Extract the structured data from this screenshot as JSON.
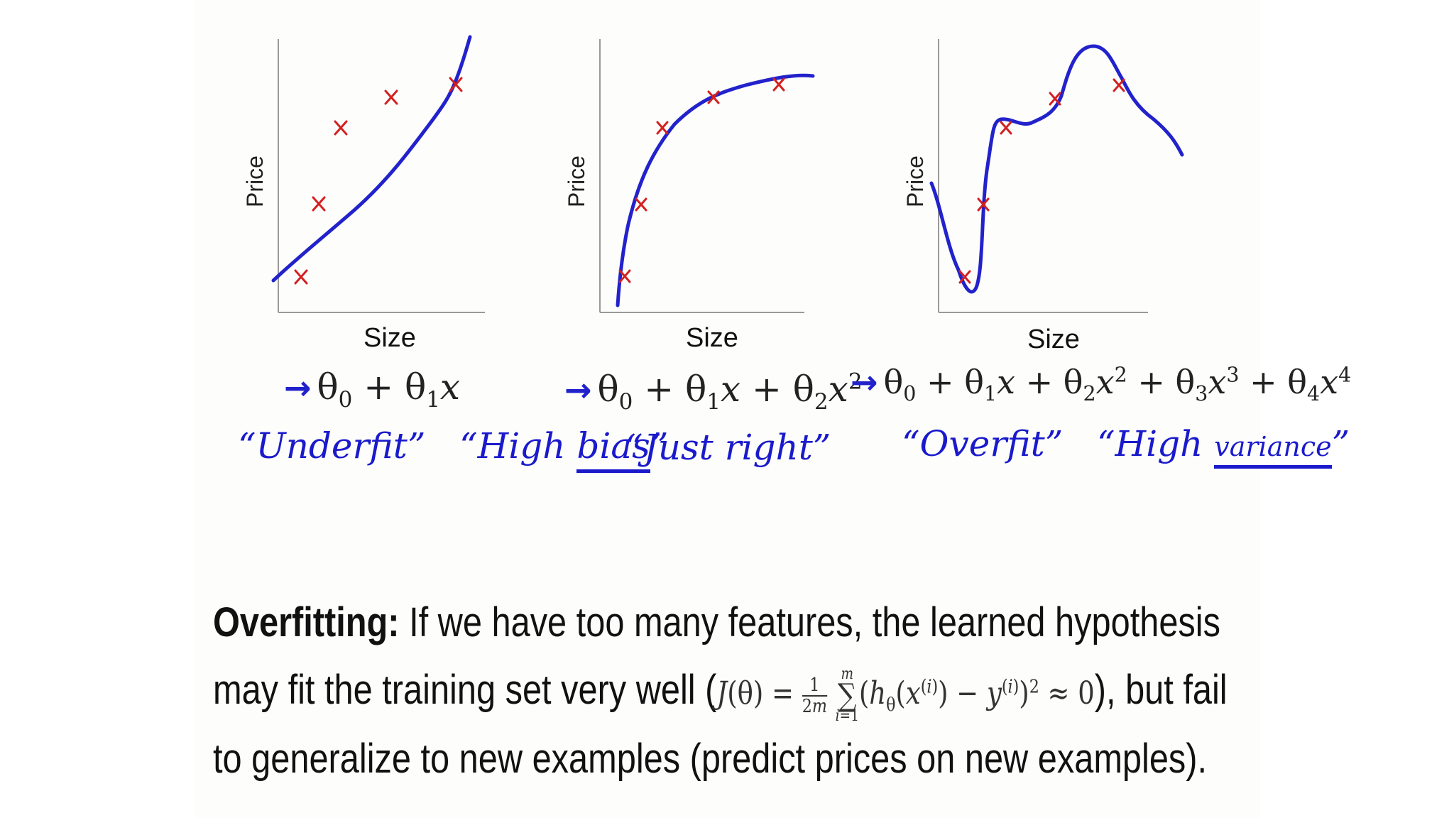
{
  "plots": [
    {
      "name": "underfit",
      "ylabel": "Price",
      "xlabel": "Size",
      "formula_html": "θ<sub>0</sub> + θ<sub>1</sub><i>x</i>",
      "note_parts": [
        "“Underfit”",
        "“High ",
        "bias",
        "”"
      ],
      "points": [
        [
          0.12,
          0.14
        ],
        [
          0.21,
          0.4
        ],
        [
          0.32,
          0.68
        ],
        [
          0.55,
          0.8
        ],
        [
          0.87,
          0.84
        ]
      ]
    },
    {
      "name": "just-right",
      "ylabel": "Price",
      "xlabel": "Size",
      "formula_html": "θ<sub>0</sub> + θ<sub>1</sub><i>x</i> + θ<sub>2</sub><i>x</i><sup>2</sup>",
      "note_parts": [
        "“Just right”"
      ],
      "points": [
        [
          0.12,
          0.14
        ],
        [
          0.2,
          0.4
        ],
        [
          0.32,
          0.68
        ],
        [
          0.55,
          0.79
        ],
        [
          0.87,
          0.83
        ]
      ]
    },
    {
      "name": "overfit",
      "ylabel": "Price",
      "xlabel": "Size",
      "formula_html": "θ<sub>0</sub> + θ<sub>1</sub><i>x</i> + θ<sub>2</sub><i>x</i><sup>2</sup> + θ<sub>3</sub><i>x</i><sup>3</sup> + θ<sub>4</sub><i>x</i><sup>4</sup>",
      "note_parts": [
        "“Overfit”",
        "“High ",
        "variance",
        "”"
      ],
      "points": [
        [
          0.12,
          0.14
        ],
        [
          0.21,
          0.4
        ],
        [
          0.32,
          0.68
        ],
        [
          0.55,
          0.79
        ],
        [
          0.87,
          0.84
        ]
      ]
    }
  ],
  "text": {
    "title": "Overfitting:",
    "line1": " If we have too many features, the learned hypothesis",
    "line2a": "may fit the training set very well (",
    "line2b": "), but fail",
    "line3": "to generalize to new examples (predict prices on new examples).",
    "cost_html": "<i>J</i>(θ) = <span style=\"display:inline-block;vertical-align:middle;text-align:center;font-size:0.6em;line-height:1.05\"><span style=\"display:block;border-bottom:2px solid #333\">1</span><span style=\"display:block\">2<i>m</i></span></span> <span style=\"display:inline-block;vertical-align:middle;text-align:center;line-height:0.9\"><span style=\"display:block;font-size:0.5em\"><i>m</i></span><span style=\"display:block\">∑</span><span style=\"display:block;font-size:0.5em\"><i>i</i>=1</span></span>(<i>h</i><sub>θ</sub>(<i>x</i><sup>(<i>i</i>)</sup>) − <i>y</i><sup>(<i>i</i>)</sup>)<sup>2</sup> ≈ 0"
  }
}
